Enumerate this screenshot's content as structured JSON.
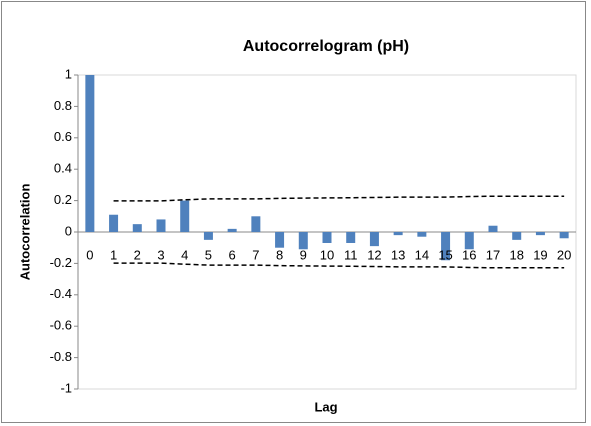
{
  "chart_data": {
    "type": "bar",
    "title": "Autocorrelogram (pH)",
    "x_label": "Lag",
    "y_label": "Autocorrelation",
    "categories": [
      "0",
      "1",
      "2",
      "3",
      "4",
      "5",
      "6",
      "7",
      "8",
      "9",
      "10",
      "11",
      "12",
      "13",
      "14",
      "15",
      "16",
      "17",
      "18",
      "19",
      "20"
    ],
    "values": [
      1,
      0.11,
      0.05,
      0.08,
      0.2,
      -0.05,
      0.02,
      0.1,
      -0.1,
      -0.11,
      -0.07,
      -0.07,
      -0.09,
      -0.02,
      -0.03,
      -0.18,
      -0.11,
      0.04,
      -0.05,
      -0.02,
      -0.04
    ],
    "color": "#4f81bd",
    "bounds": {
      "upper": [
        null,
        0.198,
        0.198,
        0.198,
        0.205,
        0.211,
        0.211,
        0.211,
        0.214,
        0.216,
        0.217,
        0.218,
        0.22,
        0.222,
        0.222,
        0.222,
        0.226,
        0.228,
        0.228,
        0.228,
        0.228
      ],
      "lower": [
        null,
        -0.198,
        -0.198,
        -0.198,
        -0.205,
        -0.211,
        -0.211,
        -0.211,
        -0.214,
        -0.216,
        -0.217,
        -0.218,
        -0.22,
        -0.222,
        -0.222,
        -0.222,
        -0.226,
        -0.228,
        -0.228,
        -0.228,
        -0.228
      ],
      "color": "#000000"
    },
    "ylim": [
      -1,
      1
    ],
    "yticks": [
      -1,
      -0.8,
      -0.6,
      -0.4,
      -0.2,
      0,
      0.2,
      0.4,
      0.6,
      0.8,
      1
    ],
    "grid": false
  }
}
